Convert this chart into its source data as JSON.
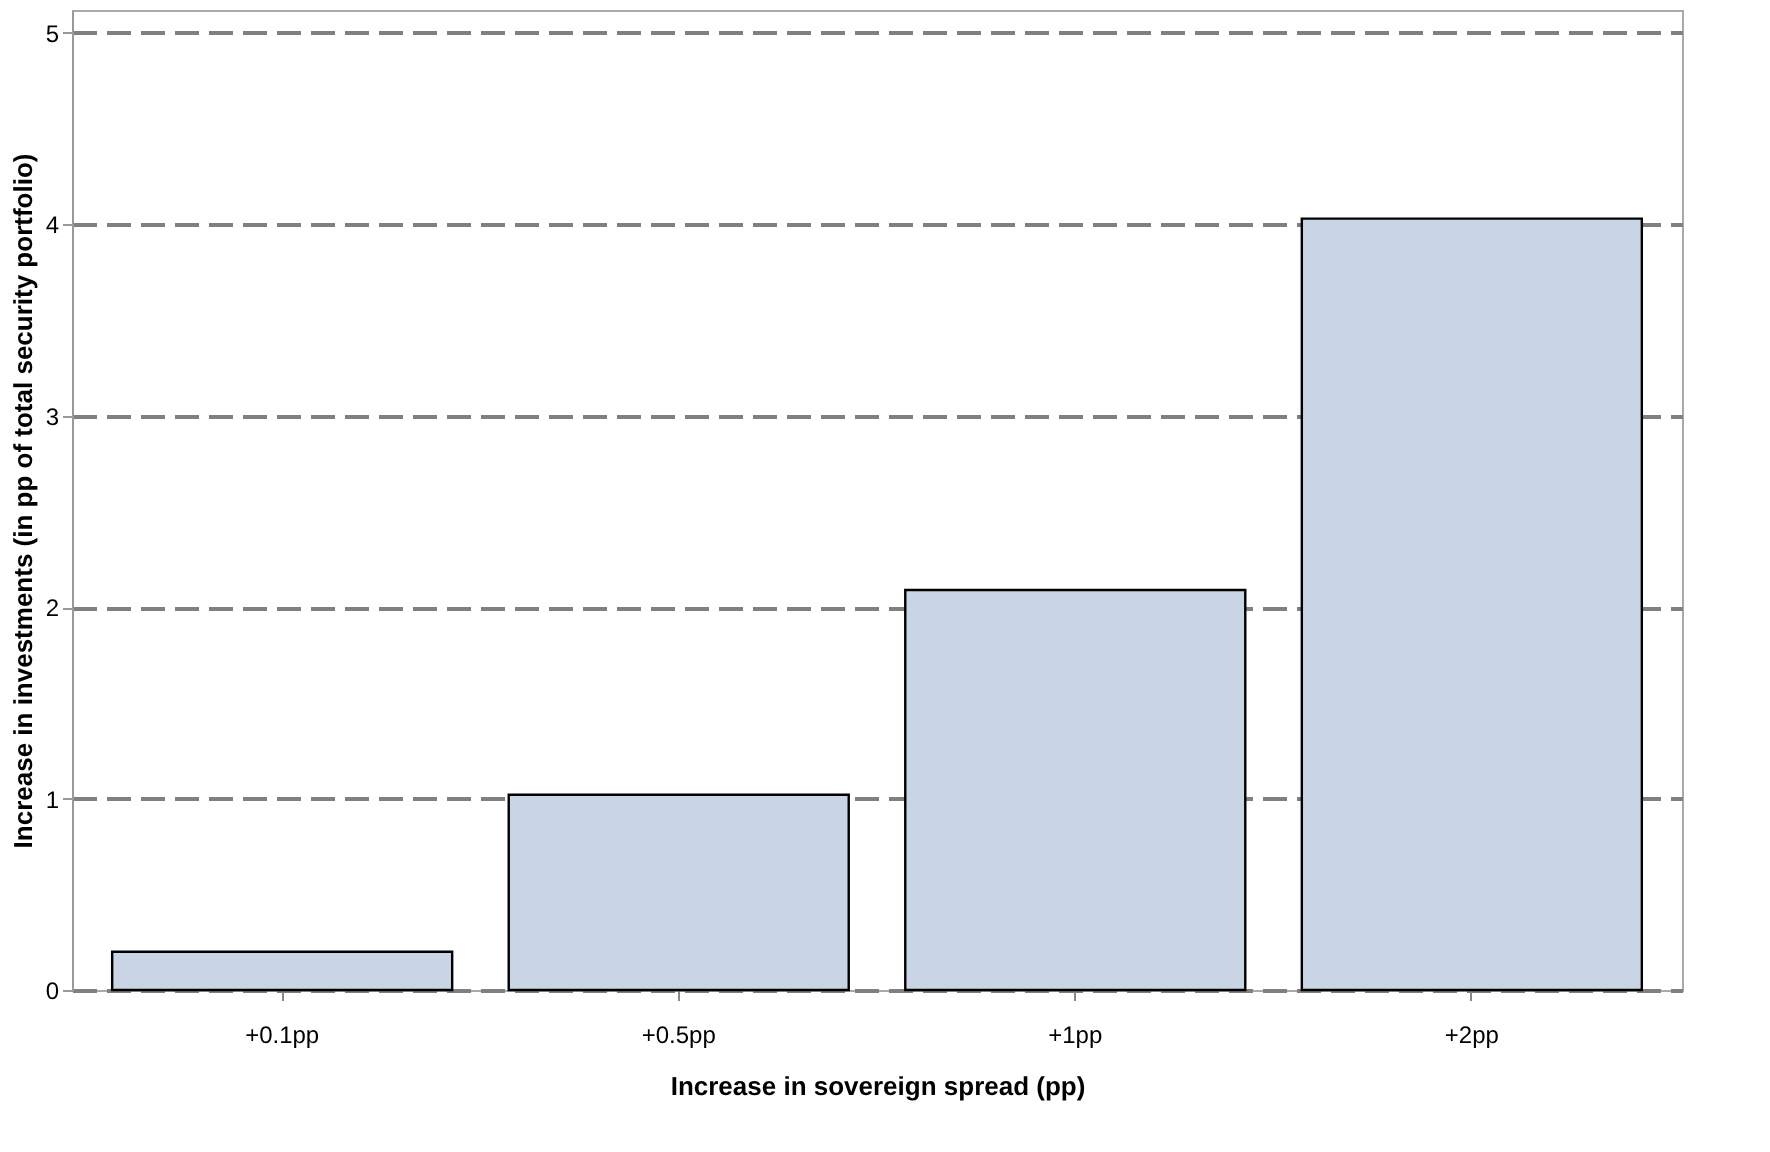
{
  "chart_data": {
    "type": "bar",
    "xlabel": "Increase in sovereign spread (pp)",
    "ylabel": "Increase in investments (in pp of total security portfolio)",
    "categories": [
      "+0.1pp",
      "+0.5pp",
      "+1pp",
      "+2pp"
    ],
    "values": [
      0.2,
      1.02,
      2.09,
      4.03
    ],
    "color": "#c9d5e5",
    "ylim": [
      0,
      5.12
    ],
    "yticks": [
      0,
      1,
      2,
      3,
      4,
      5
    ],
    "grid": "y"
  }
}
